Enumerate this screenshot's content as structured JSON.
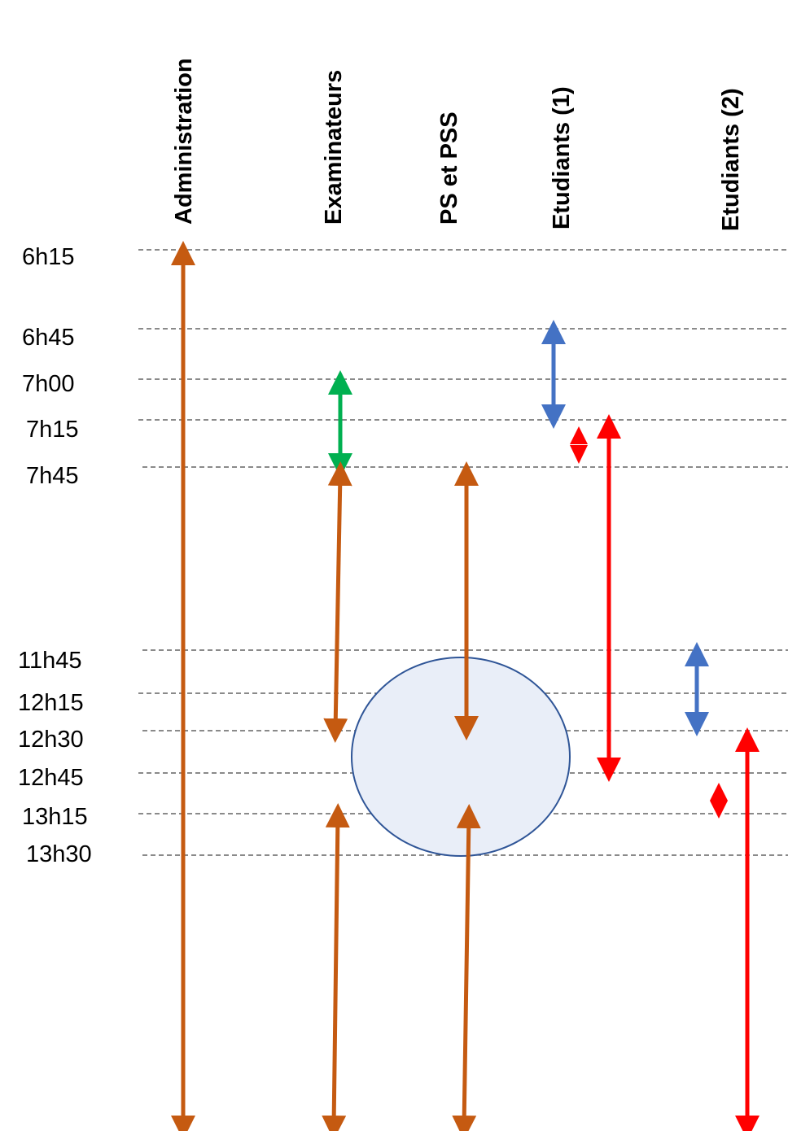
{
  "columns": [
    {
      "key": "administration",
      "label": "Administration"
    },
    {
      "key": "examinateurs",
      "label": "Examinateurs"
    },
    {
      "key": "ps_pss",
      "label": "PS et PSS"
    },
    {
      "key": "etudiants1",
      "label": "Etudiants (1)"
    },
    {
      "key": "etudiants2",
      "label": "Etudiants (2)"
    }
  ],
  "times": [
    "6h15",
    "6h45",
    "7h00",
    "7h15",
    "7h45",
    "11h45",
    "12h15",
    "12h30",
    "12h45",
    "13h15",
    "13h30"
  ],
  "colors": {
    "brown": "#C55A11",
    "green": "#00B050",
    "blue": "#4472C4",
    "red": "#FF0000",
    "ellipse_fill": "#E9EEF8",
    "ellipse_stroke": "#2F5597",
    "gridline": "#444444"
  }
}
